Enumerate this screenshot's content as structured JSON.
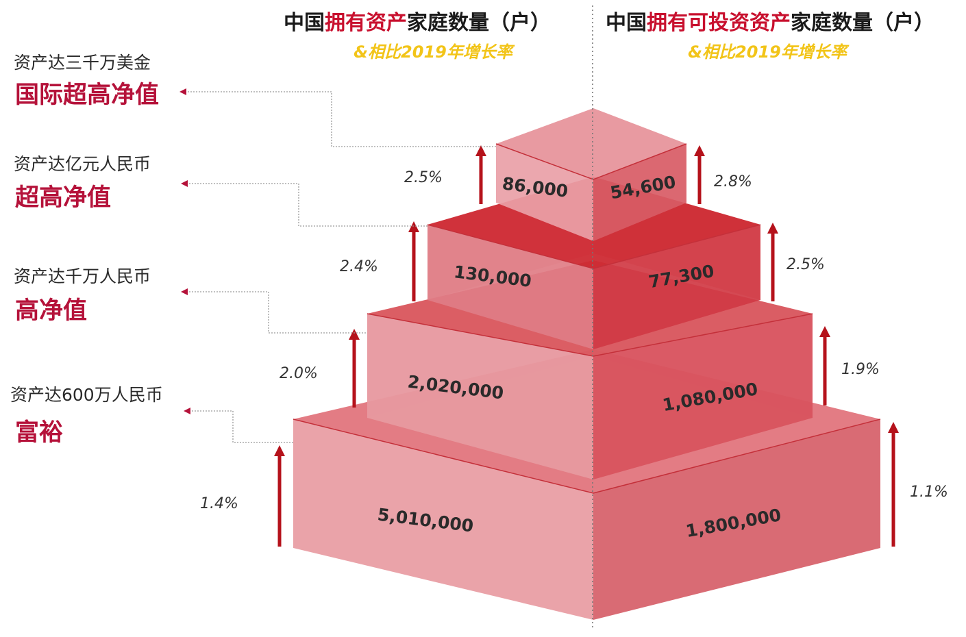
{
  "chart_data": {
    "type": "stacked-pyramid",
    "titles": {
      "left": {
        "parts": [
          "中国",
          "拥有资产",
          "家庭数量（户）"
        ],
        "subtitle": "&相比2019年增长率"
      },
      "right": {
        "parts": [
          "中国",
          "拥有可投资资产",
          "家庭数量（户）"
        ],
        "subtitle": "&相比2019年增长率"
      }
    },
    "tiers": [
      {
        "desc": "资产达600万人民币",
        "name": "富裕",
        "left_value": "5,010,000",
        "left_growth": "1.4%",
        "right_value": "1,800,000",
        "right_growth": "1.1%"
      },
      {
        "desc": "资产达千万人民币",
        "name": "高净值",
        "left_value": "2,020,000",
        "left_growth": "2.0%",
        "right_value": "1,080,000",
        "right_growth": "1.9%"
      },
      {
        "desc": "资产达亿元人民币",
        "name": "超高净值",
        "left_value": "130,000",
        "left_growth": "2.4%",
        "right_value": "77,300",
        "right_growth": "2.5%"
      },
      {
        "desc": "资产达三千万美金",
        "name": "国际超高净值",
        "left_value": "86,000",
        "left_growth": "2.5%",
        "right_value": "54,600",
        "right_growth": "2.8%"
      }
    ]
  },
  "colors": {
    "front_light": "#eaa3a9",
    "front_mid": "#d96b74",
    "front_dark": "#d03a44",
    "top": "#cd2a33",
    "arrow": "#b5121b",
    "accent_red": "#c8102e",
    "subtitle_yellow": "#f2c418"
  }
}
